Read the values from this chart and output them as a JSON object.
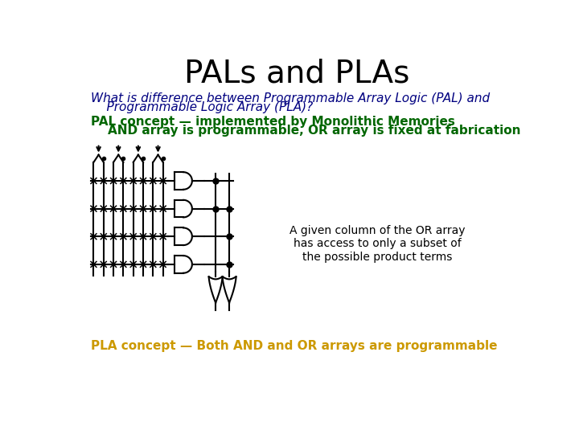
{
  "title": "PALs and PLAs",
  "title_fontsize": 28,
  "title_color": "#000000",
  "subtitle_line1": "What is difference between Programmable Array Logic (PAL) and",
  "subtitle_line2": "    Programmable Logic Array (PLA)?",
  "subtitle_color": "#000080",
  "subtitle_fontsize": 11,
  "pal_line1": "PAL concept — implemented by Monolithic Memories",
  "pal_line2": "    AND array is programmable, OR array is fixed at fabrication",
  "pal_text_color": "#006600",
  "pal_text_fontsize": 11,
  "annotation_text": "A given column of the OR array\nhas access to only a subset of\nthe possible product terms",
  "annotation_color": "#000000",
  "annotation_fontsize": 10,
  "pla_text": "PLA concept — Both AND and OR arrays are programmable",
  "pla_text_color": "#cc9900",
  "pla_text_fontsize": 11,
  "bg_color": "#ffffff"
}
